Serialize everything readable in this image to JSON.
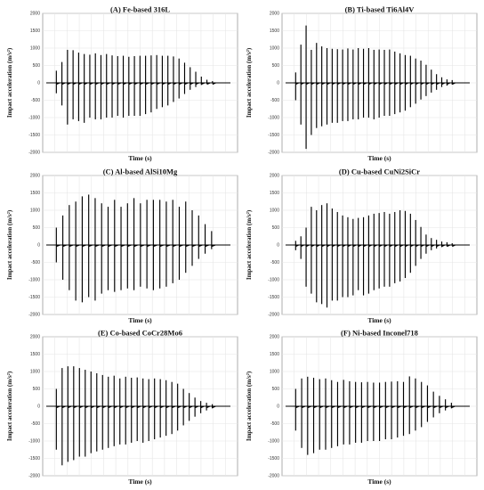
{
  "chart_data": [
    {
      "type": "line",
      "title": "(A) Fe-based 316L",
      "xlabel": "Time (s)",
      "ylabel": "Impact acceleration (m/s²)",
      "ylim": [
        -2000,
        2000
      ],
      "yticks": [
        2000,
        1500,
        1000,
        500,
        0,
        -500,
        -1000,
        -1500,
        -2000
      ],
      "grid": true,
      "series": [
        {
          "pos": [
            350,
            600,
            950,
            940,
            870,
            830,
            810,
            850,
            800,
            830,
            790,
            770,
            780,
            750,
            770,
            780,
            780,
            790,
            800,
            780,
            780,
            760,
            700,
            580,
            450,
            320,
            180,
            90,
            50
          ],
          "neg": [
            -300,
            -650,
            -1200,
            -1050,
            -1100,
            -1150,
            -1000,
            -1050,
            -1050,
            -1000,
            -1000,
            -950,
            -1000,
            -950,
            -950,
            -950,
            -900,
            -850,
            -750,
            -700,
            -650,
            -550,
            -450,
            -320,
            -200,
            -120,
            -60,
            -30,
            -15
          ]
        }
      ]
    },
    {
      "type": "line",
      "title": "(B) Ti-based Ti6Al4V",
      "xlabel": "Time (s)",
      "ylabel": "Impact acceleration (m/s²)",
      "ylim": [
        -2000,
        2000
      ],
      "yticks": [
        2000,
        1500,
        1000,
        500,
        0,
        -500,
        -1000,
        -1500,
        -2000
      ],
      "grid": true,
      "series": [
        {
          "pos": [
            300,
            1100,
            1650,
            950,
            1150,
            1050,
            1000,
            980,
            970,
            960,
            990,
            960,
            1000,
            980,
            1000,
            950,
            960,
            950,
            960,
            900,
            850,
            800,
            780,
            700,
            640,
            520,
            380,
            250,
            160,
            100,
            80
          ],
          "neg": [
            -500,
            -1200,
            -1900,
            -1500,
            -1300,
            -1250,
            -1200,
            -1150,
            -1150,
            -1100,
            -1100,
            -1050,
            -1050,
            -1000,
            -1000,
            -1050,
            -1000,
            -950,
            -950,
            -900,
            -850,
            -800,
            -700,
            -600,
            -480,
            -380,
            -280,
            -200,
            -120,
            -80,
            -50
          ]
        }
      ]
    },
    {
      "type": "line",
      "title": "(C) Al-based AlSi10Mg",
      "xlabel": "Time (s)",
      "ylabel": "Impact acceleration (m/s²)",
      "ylim": [
        -2000,
        2000
      ],
      "yticks": [
        2000,
        1500,
        1000,
        500,
        0,
        -500,
        -1000,
        -1500,
        -2000
      ],
      "grid": true,
      "series": [
        {
          "pos": [
            500,
            850,
            1150,
            1250,
            1400,
            1450,
            1350,
            1200,
            1100,
            1300,
            1100,
            1200,
            1350,
            1200,
            1300,
            1300,
            1300,
            1250,
            1300,
            1100,
            1250,
            1000,
            850,
            600,
            400
          ],
          "neg": [
            -500,
            -1000,
            -1300,
            -1600,
            -1650,
            -1500,
            -1600,
            -1400,
            -1300,
            -1350,
            -1300,
            -1250,
            -1300,
            -1200,
            -1250,
            -1300,
            -1250,
            -1200,
            -1100,
            -1000,
            -800,
            -600,
            -400,
            -250,
            -120
          ]
        }
      ]
    },
    {
      "type": "line",
      "title": "(D) Cu-based CuNi2SiCr",
      "xlabel": "Time (s)",
      "ylabel": "Impact acceleration (m/s²)",
      "ylim": [
        -2000,
        2000
      ],
      "yticks": [
        2000,
        1500,
        1000,
        500,
        0,
        -500,
        -1000,
        -1500,
        -2000
      ],
      "grid": true,
      "series": [
        {
          "pos": [
            120,
            250,
            500,
            1100,
            1000,
            1150,
            1200,
            1050,
            950,
            850,
            800,
            750,
            780,
            800,
            850,
            900,
            920,
            950,
            900,
            950,
            1000,
            980,
            900,
            720,
            520,
            300,
            200,
            150,
            100,
            80,
            50
          ],
          "neg": [
            -150,
            -400,
            -1200,
            -1400,
            -1650,
            -1700,
            -1800,
            -1600,
            -1600,
            -1500,
            -1500,
            -1450,
            -1300,
            -1450,
            -1400,
            -1300,
            -1250,
            -1200,
            -1200,
            -1100,
            -1050,
            -950,
            -800,
            -600,
            -400,
            -250,
            -150,
            -100,
            -60,
            -40,
            -20
          ]
        }
      ]
    },
    {
      "type": "line",
      "title": "(E) Co-based CoCr28Mo6",
      "xlabel": "Time (s)",
      "ylabel": "Impact acceleration (m/s²)",
      "ylim": [
        -2000,
        2000
      ],
      "yticks": [
        2000,
        1500,
        1000,
        500,
        0,
        -500,
        -1000,
        -1500,
        -2000
      ],
      "grid": true,
      "series": [
        {
          "pos": [
            500,
            1100,
            1150,
            1150,
            1100,
            1050,
            1000,
            950,
            900,
            850,
            880,
            800,
            850,
            820,
            830,
            800,
            780,
            800,
            780,
            750,
            700,
            650,
            500,
            380,
            250,
            150,
            100,
            60
          ],
          "neg": [
            -1250,
            -1700,
            -1600,
            -1550,
            -1450,
            -1450,
            -1350,
            -1300,
            -1250,
            -1200,
            -1150,
            -1100,
            -1100,
            -1050,
            -1000,
            -1050,
            -1000,
            -950,
            -900,
            -850,
            -800,
            -700,
            -550,
            -420,
            -300,
            -200,
            -120,
            -60
          ]
        }
      ]
    },
    {
      "type": "line",
      "title": "(F) Ni-based Inconel718",
      "xlabel": "Time (s)",
      "ylabel": "Impact acceleration (m/s²)",
      "ylim": [
        -2000,
        2000
      ],
      "yticks": [
        2000,
        1500,
        1000,
        500,
        0,
        -500,
        -1000,
        -1500,
        -2000
      ],
      "grid": true,
      "series": [
        {
          "pos": [
            500,
            800,
            850,
            820,
            780,
            800,
            750,
            700,
            760,
            720,
            700,
            690,
            700,
            680,
            680,
            700,
            710,
            720,
            700,
            860,
            800,
            700,
            600,
            420,
            300,
            200,
            100
          ],
          "neg": [
            -700,
            -1200,
            -1400,
            -1350,
            -1250,
            -1250,
            -1200,
            -1150,
            -1100,
            -1100,
            -1050,
            -1050,
            -1000,
            -1000,
            -1000,
            -950,
            -950,
            -900,
            -850,
            -800,
            -700,
            -600,
            -450,
            -320,
            -200,
            -120,
            -60
          ]
        }
      ]
    }
  ]
}
